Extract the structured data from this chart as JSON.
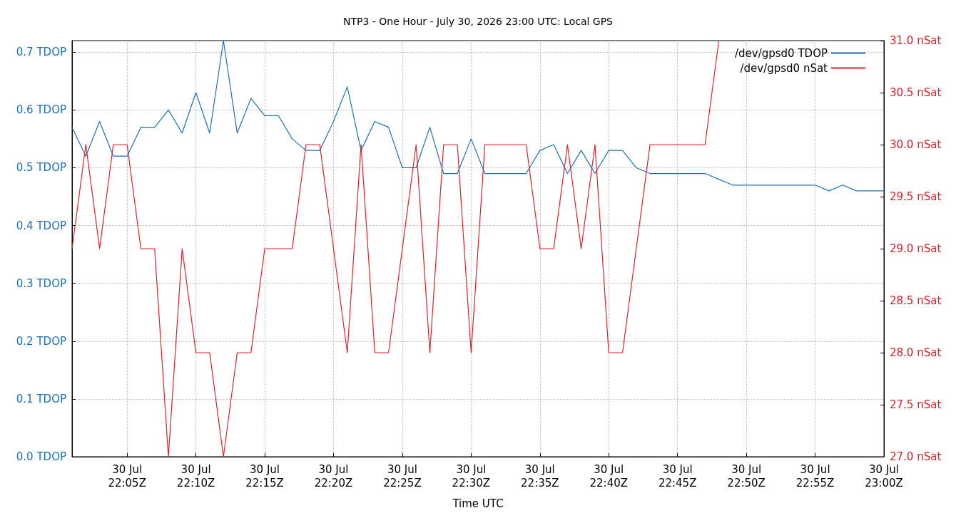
{
  "chart_data": {
    "type": "line",
    "title": "NTP3 - One Hour - July 30, 2026 23:00 UTC: Local GPS",
    "xlabel": "Time UTC",
    "x": [
      "2026-07-30T22:01",
      "2026-07-30T22:02",
      "2026-07-30T22:03",
      "2026-07-30T22:04",
      "2026-07-30T22:05",
      "2026-07-30T22:06",
      "2026-07-30T22:07",
      "2026-07-30T22:08",
      "2026-07-30T22:09",
      "2026-07-30T22:10",
      "2026-07-30T22:11",
      "2026-07-30T22:12",
      "2026-07-30T22:13",
      "2026-07-30T22:14",
      "2026-07-30T22:15",
      "2026-07-30T22:16",
      "2026-07-30T22:17",
      "2026-07-30T22:18",
      "2026-07-30T22:19",
      "2026-07-30T22:20",
      "2026-07-30T22:21",
      "2026-07-30T22:22",
      "2026-07-30T22:23",
      "2026-07-30T22:24",
      "2026-07-30T22:25",
      "2026-07-30T22:26",
      "2026-07-30T22:27",
      "2026-07-30T22:28",
      "2026-07-30T22:29",
      "2026-07-30T22:30",
      "2026-07-30T22:31",
      "2026-07-30T22:32",
      "2026-07-30T22:33",
      "2026-07-30T22:34",
      "2026-07-30T22:35",
      "2026-07-30T22:36",
      "2026-07-30T22:37",
      "2026-07-30T22:38",
      "2026-07-30T22:39",
      "2026-07-30T22:40",
      "2026-07-30T22:41",
      "2026-07-30T22:42",
      "2026-07-30T22:43",
      "2026-07-30T22:44",
      "2026-07-30T22:45",
      "2026-07-30T22:46",
      "2026-07-30T22:47",
      "2026-07-30T22:48",
      "2026-07-30T22:49",
      "2026-07-30T22:50",
      "2026-07-30T22:51",
      "2026-07-30T22:52",
      "2026-07-30T22:53",
      "2026-07-30T22:54",
      "2026-07-30T22:55",
      "2026-07-30T22:56",
      "2026-07-30T22:57",
      "2026-07-30T22:58",
      "2026-07-30T22:59",
      "2026-07-30T23:00"
    ],
    "series": [
      {
        "name": "/dev/gpsd0 TDOP",
        "color": "#1f6fb5",
        "values": [
          0.57,
          0.52,
          0.58,
          0.52,
          0.52,
          0.57,
          0.57,
          0.6,
          0.56,
          0.63,
          0.56,
          0.72,
          0.56,
          0.62,
          0.59,
          0.59,
          0.55,
          0.53,
          0.53,
          0.58,
          0.64,
          0.53,
          0.58,
          0.57,
          0.5,
          0.5,
          0.57,
          0.49,
          0.49,
          0.55,
          0.49,
          0.49,
          0.49,
          0.49,
          0.53,
          0.54,
          0.49,
          0.53,
          0.49,
          0.53,
          0.53,
          0.5,
          0.49,
          0.49,
          0.49,
          0.49,
          0.49,
          0.48,
          0.47,
          0.47,
          0.47,
          0.47,
          0.47,
          0.47,
          0.47,
          0.46,
          0.47,
          0.46,
          0.46,
          0.46
        ]
      },
      {
        "name": "/dev/gpsd0 nSat",
        "color": "#e0202a",
        "axis": "y2",
        "values": [
          29,
          30,
          29,
          30,
          30,
          29,
          29,
          27,
          29,
          28,
          28,
          27,
          28,
          28,
          29,
          29,
          29,
          30,
          30,
          29,
          28,
          30,
          28,
          28,
          29,
          30,
          28,
          30,
          30,
          28,
          30,
          30,
          30,
          30,
          29,
          29,
          30,
          29,
          30,
          28,
          28,
          29,
          30,
          30,
          30,
          30,
          30,
          31,
          null,
          null,
          null,
          null,
          null,
          null,
          null,
          null,
          null,
          null,
          null,
          null
        ]
      }
    ],
    "xlim": [
      "2026-07-30T22:01",
      "2026-07-30T23:00"
    ],
    "xticks": [
      {
        "value": "2026-07-30T22:05",
        "label": "30 Jul\n22:05Z"
      },
      {
        "value": "2026-07-30T22:10",
        "label": "30 Jul\n22:10Z"
      },
      {
        "value": "2026-07-30T22:15",
        "label": "30 Jul\n22:15Z"
      },
      {
        "value": "2026-07-30T22:20",
        "label": "30 Jul\n22:20Z"
      },
      {
        "value": "2026-07-30T22:25",
        "label": "30 Jul\n22:25Z"
      },
      {
        "value": "2026-07-30T22:30",
        "label": "30 Jul\n22:30Z"
      },
      {
        "value": "2026-07-30T22:35",
        "label": "30 Jul\n22:35Z"
      },
      {
        "value": "2026-07-30T22:40",
        "label": "30 Jul\n22:40Z"
      },
      {
        "value": "2026-07-30T22:45",
        "label": "30 Jul\n22:45Z"
      },
      {
        "value": "2026-07-30T22:50",
        "label": "30 Jul\n22:50Z"
      },
      {
        "value": "2026-07-30T22:55",
        "label": "30 Jul\n22:55Z"
      },
      {
        "value": "2026-07-30T23:00",
        "label": "30 Jul\n23:00Z"
      }
    ],
    "ylim": [
      0,
      0.72
    ],
    "yticks": [
      {
        "value": 0,
        "label": "0.0 TDOP"
      },
      {
        "value": 0.1,
        "label": "0.1 TDOP"
      },
      {
        "value": 0.2,
        "label": "0.2 TDOP"
      },
      {
        "value": 0.3,
        "label": "0.3 TDOP"
      },
      {
        "value": 0.4,
        "label": "0.4 TDOP"
      },
      {
        "value": 0.5,
        "label": "0.5 TDOP"
      },
      {
        "value": 0.6,
        "label": "0.6 TDOP"
      },
      {
        "value": 0.7,
        "label": "0.7 TDOP"
      }
    ],
    "y2lim": [
      27,
      31
    ],
    "y2ticks": [
      {
        "value": 27,
        "label": "27.0 nSat"
      },
      {
        "value": 27.5,
        "label": "27.5 nSat"
      },
      {
        "value": 28,
        "label": "28.0 nSat"
      },
      {
        "value": 28.5,
        "label": "28.5 nSat"
      },
      {
        "value": 29,
        "label": "29.0 nSat"
      },
      {
        "value": 29.5,
        "label": "29.5 nSat"
      },
      {
        "value": 30,
        "label": "30.0 nSat"
      },
      {
        "value": 30.5,
        "label": "30.5 nSat"
      },
      {
        "value": 31,
        "label": "31.0 nSat"
      }
    ],
    "grid": true,
    "legend": "top right",
    "marker": "none",
    "line_style": "solid"
  }
}
